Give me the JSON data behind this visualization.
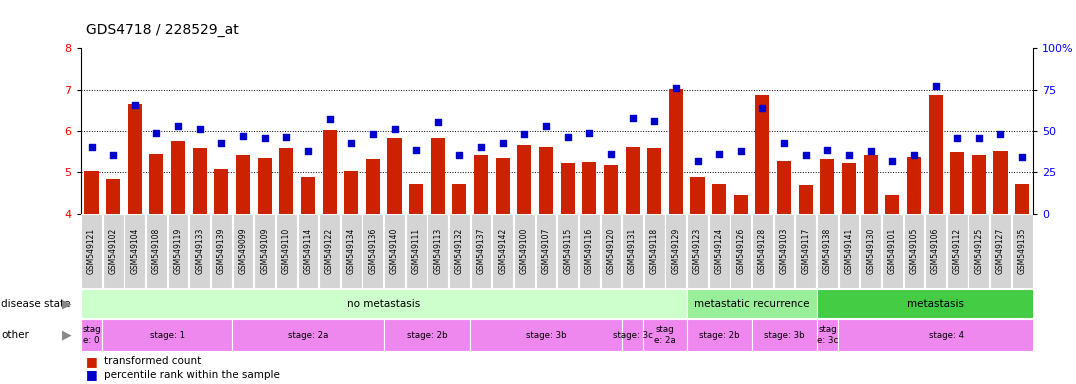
{
  "title": "GDS4718 / 228529_at",
  "sample_ids": [
    "GSM549121",
    "GSM549102",
    "GSM549104",
    "GSM549108",
    "GSM549119",
    "GSM549133",
    "GSM549139",
    "GSM549099",
    "GSM549109",
    "GSM549110",
    "GSM549114",
    "GSM549122",
    "GSM549134",
    "GSM549136",
    "GSM549140",
    "GSM549111",
    "GSM549113",
    "GSM549132",
    "GSM549137",
    "GSM549142",
    "GSM549100",
    "GSM549107",
    "GSM549115",
    "GSM549116",
    "GSM549120",
    "GSM549131",
    "GSM549118",
    "GSM549129",
    "GSM549123",
    "GSM549124",
    "GSM549126",
    "GSM549128",
    "GSM549103",
    "GSM549117",
    "GSM549138",
    "GSM549141",
    "GSM549130",
    "GSM549101",
    "GSM549105",
    "GSM549106",
    "GSM549112",
    "GSM549125",
    "GSM549127",
    "GSM549135"
  ],
  "bar_values": [
    5.02,
    4.83,
    6.65,
    5.45,
    5.75,
    5.58,
    5.08,
    5.42,
    5.35,
    5.58,
    4.88,
    6.02,
    5.02,
    5.32,
    5.82,
    4.72,
    5.82,
    4.72,
    5.42,
    5.35,
    5.65,
    5.62,
    5.22,
    5.25,
    5.18,
    5.62,
    5.58,
    7.02,
    4.88,
    4.72,
    4.45,
    6.88,
    5.28,
    4.68,
    5.32,
    5.22,
    5.42,
    4.45,
    5.38,
    6.88,
    5.48,
    5.42,
    5.52,
    4.72
  ],
  "dot_values": [
    5.62,
    5.42,
    6.62,
    5.95,
    6.12,
    6.05,
    5.72,
    5.88,
    5.82,
    5.85,
    5.52,
    6.28,
    5.72,
    5.92,
    6.05,
    5.55,
    6.22,
    5.42,
    5.62,
    5.72,
    5.92,
    6.12,
    5.85,
    5.95,
    5.45,
    6.32,
    6.25,
    7.05,
    5.28,
    5.45,
    5.52,
    6.55,
    5.72,
    5.42,
    5.55,
    5.42,
    5.52,
    5.28,
    5.42,
    7.08,
    5.82,
    5.82,
    5.92,
    5.38
  ],
  "ylim_left": [
    4.0,
    8.0
  ],
  "bar_color": "#cc2200",
  "dot_color": "#0000cc",
  "grid_lines": [
    5,
    6,
    7
  ],
  "disease_state_groups": [
    {
      "label": "no metastasis",
      "start": 0,
      "end": 27,
      "color": "#ccffcc"
    },
    {
      "label": "metastatic recurrence",
      "start": 28,
      "end": 33,
      "color": "#99ee99"
    },
    {
      "label": "metastasis",
      "start": 34,
      "end": 44,
      "color": "#44cc44"
    }
  ],
  "stage_groups": [
    {
      "label": "stag\ne: 0",
      "start": 0,
      "end": 0
    },
    {
      "label": "stage: 1",
      "start": 1,
      "end": 6
    },
    {
      "label": "stage: 2a",
      "start": 7,
      "end": 13
    },
    {
      "label": "stage: 2b",
      "start": 14,
      "end": 17
    },
    {
      "label": "stage: 3b",
      "start": 18,
      "end": 24
    },
    {
      "label": "stage: 3c",
      "start": 25,
      "end": 25
    },
    {
      "label": "stag\ne: 2a",
      "start": 26,
      "end": 27
    },
    {
      "label": "stage: 2b",
      "start": 28,
      "end": 30
    },
    {
      "label": "stage: 3b",
      "start": 31,
      "end": 33
    },
    {
      "label": "stag\ne: 3c",
      "start": 34,
      "end": 34
    },
    {
      "label": "stage: 4",
      "start": 35,
      "end": 44
    }
  ],
  "stage_color": "#ee88ee",
  "xtick_box_color": "#d4d4d4",
  "disease_state_label": "disease state",
  "other_label": "other",
  "legend_bar_label": "transformed count",
  "legend_dot_label": "percentile rank within the sample"
}
